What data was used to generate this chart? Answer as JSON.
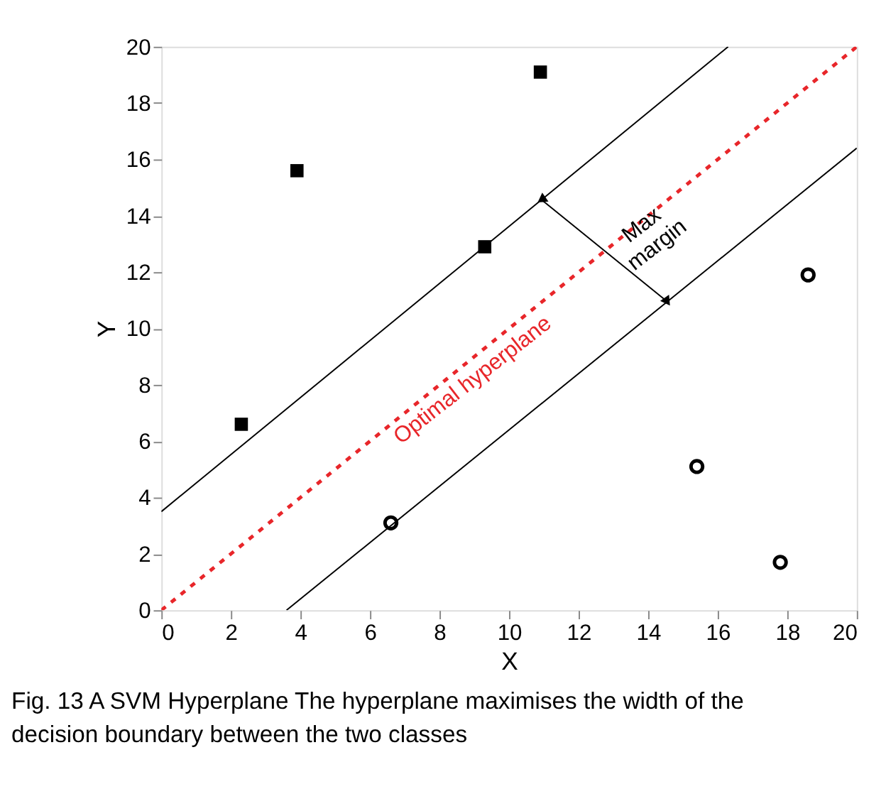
{
  "chart_data": {
    "type": "scatter",
    "xlabel": "X",
    "ylabel": "Y",
    "xlim": [
      0,
      20
    ],
    "ylim": [
      0,
      20
    ],
    "xticks": [
      0,
      2,
      4,
      6,
      8,
      10,
      12,
      14,
      16,
      18,
      20
    ],
    "yticks": [
      0,
      2,
      4,
      6,
      8,
      10,
      12,
      14,
      16,
      18,
      20
    ],
    "grid": false,
    "series": [
      {
        "marker": "square",
        "color": "#000000",
        "x": [
          2.3,
          3.9,
          9.3,
          10.9
        ],
        "values": [
          6.6,
          15.6,
          12.9,
          19.1
        ]
      },
      {
        "marker": "circle",
        "color": "#000000",
        "x": [
          6.6,
          15.4,
          17.8,
          18.6
        ],
        "values": [
          3.1,
          5.1,
          1.7,
          11.9
        ]
      },
      {
        "type": "line",
        "line_style": "dashed",
        "color": "#e8262a",
        "x": [
          0,
          20
        ],
        "values": [
          0,
          20
        ]
      },
      {
        "type": "line",
        "line_style": "solid",
        "color": "#000000",
        "x": [
          0,
          16.3
        ],
        "values": [
          3.5,
          20
        ]
      },
      {
        "type": "line",
        "line_style": "solid",
        "color": "#000000",
        "x": [
          3.6,
          20
        ],
        "values": [
          0,
          16.4
        ]
      }
    ],
    "annotations": [
      "Optimal hyperplane",
      {
        "text": "Max margin",
        "x": 12.8,
        "y": 12.7
      },
      "Fig. 13 A SVM Hyperplane The hyperplane maximises the width of the decision boundary between the two classes"
    ]
  }
}
